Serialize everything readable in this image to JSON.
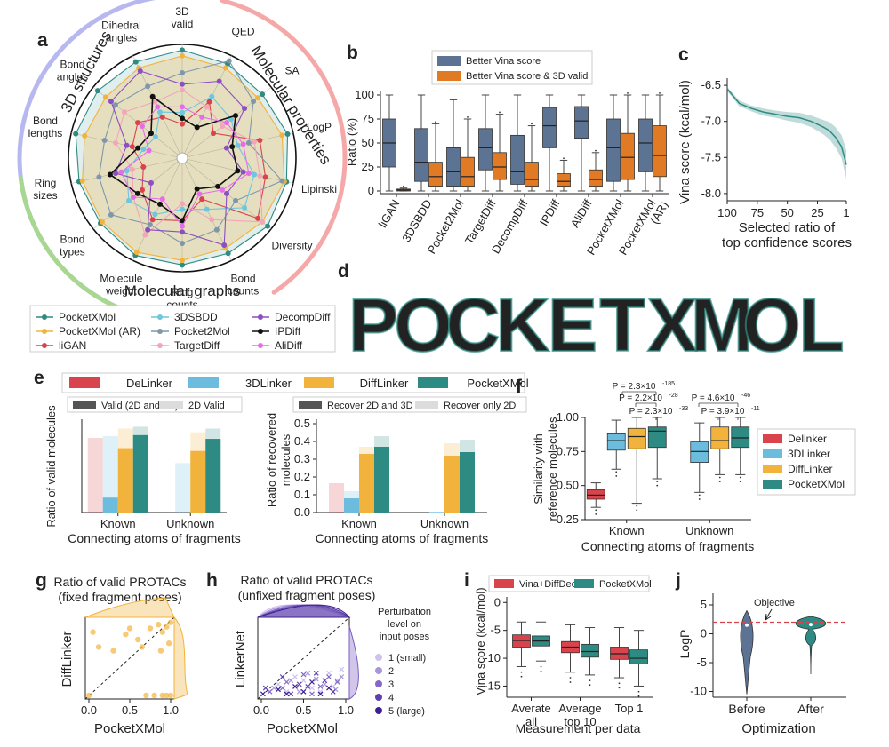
{
  "colors": {
    "pocketxmol": "#2e8b83",
    "pocketxmol_ar": "#f2b33c",
    "ligan": "#d9434c",
    "threedsbdd": "#6ec6df",
    "pocket2mol": "#7f97aa",
    "targetdiff": "#f2a6b8",
    "decompdiff": "#8b4fc0",
    "ipdiff": "#111111",
    "alidiff": "#e56ee8",
    "vina_blue": "#5d7394",
    "vina_orange": "#e07a25",
    "delinker": "#d9434c",
    "linker3d": "#6bbcdd",
    "difflinker": "#f2b33c",
    "gray": "#555555",
    "lightgray": "#dcdcdc",
    "purple": "#7a5cc0",
    "red": "#d9434c",
    "teal": "#2e8b83"
  },
  "panel_labels": {
    "a": "a",
    "b": "b",
    "c": "c",
    "d": "d",
    "e": "e",
    "f": "f",
    "g": "g",
    "h": "h",
    "i": "i",
    "j": "j"
  },
  "chart_data": [
    {
      "id": "a",
      "type": "radar",
      "axes": [
        "3D valid",
        "QED",
        "SA",
        "LogP",
        "Lipinski",
        "Diversity",
        "Bond counts",
        "Ring counts",
        "Molecule weight",
        "Bond types",
        "Ring sizes",
        "Bond lengths",
        "Bond angles",
        "Dihedral angles"
      ],
      "axis_label_lines": [
        [
          "3D",
          "valid"
        ],
        [
          "QED"
        ],
        [
          "SA"
        ],
        [
          "LogP"
        ],
        [
          "Lipinski"
        ],
        [
          "Diversity"
        ],
        [
          "Bond",
          "counts"
        ],
        [
          "Ring",
          "counts"
        ],
        [
          "Molecule",
          "weight"
        ],
        [
          "Bond",
          "types"
        ],
        [
          "Ring",
          "sizes"
        ],
        [
          "Bond",
          "lengths"
        ],
        [
          "Bond",
          "angles"
        ],
        [
          "Dihedral",
          "angles"
        ]
      ],
      "groups": [
        "3D structures",
        "Molecular properties",
        "Molecular graphs"
      ],
      "series": [
        {
          "name": "PocketXMol",
          "values": [
            0.95,
            0.92,
            0.9,
            0.95,
            0.94,
            0.96,
            0.93,
            0.94,
            0.95,
            0.92,
            0.93,
            0.96,
            0.95,
            0.94
          ]
        },
        {
          "name": "PocketXMol (AR)",
          "values": [
            0.9,
            0.88,
            0.85,
            0.9,
            0.92,
            0.9,
            0.88,
            0.9,
            0.92,
            0.9,
            0.9,
            0.88,
            0.86,
            0.88
          ]
        },
        {
          "name": "liGAN",
          "values": [
            0.3,
            0.55,
            0.35,
            0.7,
            0.75,
            0.85,
            0.4,
            0.55,
            0.6,
            0.45,
            0.35,
            0.45,
            0.5,
            0.4
          ]
        },
        {
          "name": "3DSBDD",
          "values": [
            0.4,
            0.6,
            0.55,
            0.5,
            0.65,
            0.7,
            0.5,
            0.45,
            0.55,
            0.6,
            0.5,
            0.35,
            0.3,
            0.45
          ]
        },
        {
          "name": "Pocket2Mol",
          "values": [
            0.75,
            0.95,
            0.8,
            0.6,
            0.9,
            0.6,
            0.7,
            0.75,
            0.65,
            0.8,
            0.75,
            0.7,
            0.75,
            0.7
          ]
        },
        {
          "name": "TargetDiff",
          "values": [
            0.6,
            0.5,
            0.45,
            0.65,
            0.7,
            0.9,
            0.6,
            0.4,
            0.75,
            0.55,
            0.45,
            0.6,
            0.65,
            0.55
          ]
        },
        {
          "name": "DecompDiff",
          "values": [
            0.65,
            0.75,
            0.7,
            0.4,
            0.55,
            0.5,
            0.85,
            0.65,
            0.7,
            0.35,
            0.6,
            0.5,
            0.8,
            0.85
          ]
        },
        {
          "name": "IPDiff",
          "values": [
            0.35,
            0.3,
            0.6,
            0.45,
            0.5,
            0.4,
            0.3,
            0.55,
            0.45,
            0.5,
            0.65,
            0.4,
            0.35,
            0.6
          ]
        },
        {
          "name": "AliDiff",
          "values": [
            0.45,
            0.4,
            0.5,
            0.55,
            0.6,
            0.45,
            0.35,
            0.6,
            0.4,
            0.55,
            0.55,
            0.3,
            0.45,
            0.5
          ]
        }
      ]
    },
    {
      "id": "b",
      "type": "box",
      "title": "",
      "ylabel": "Ratio (%)",
      "ylim": [
        0,
        100
      ],
      "yticks": [
        0,
        25,
        50,
        75,
        100
      ],
      "categories": [
        "liGAN",
        "3DSBDD",
        "Pocket2Mol",
        "TargetDiff",
        "DecompDiff",
        "IPDiff",
        "AliDiff",
        "PocketXMol",
        "PocketXMol (AR)"
      ],
      "category_label_lines": [
        [
          "liGAN"
        ],
        [
          "3DSBDD"
        ],
        [
          "Pocket2Mol"
        ],
        [
          "TargetDiff"
        ],
        [
          "DecompDiff"
        ],
        [
          "IPDiff"
        ],
        [
          "AliDiff"
        ],
        [
          "PocketXMol"
        ],
        [
          "PocketXMol",
          "(AR)"
        ]
      ],
      "legend": [
        "Better Vina score",
        "Better Vina score & 3D valid"
      ],
      "series": [
        {
          "name": "Better Vina score",
          "boxes": [
            [
              0,
              25,
              50,
              75,
              100
            ],
            [
              0,
              10,
              30,
              65,
              100
            ],
            [
              0,
              5,
              20,
              45,
              95
            ],
            [
              0,
              22,
              45,
              65,
              100
            ],
            [
              0,
              7,
              20,
              58,
              100
            ],
            [
              0,
              45,
              68,
              87,
              100
            ],
            [
              0,
              55,
              73,
              88,
              100
            ],
            [
              0,
              10,
              45,
              75,
              100
            ],
            [
              0,
              20,
              50,
              75,
              100
            ]
          ]
        },
        {
          "name": "Better Vina score & 3D valid",
          "boxes": [
            [
              0,
              0,
              1,
              2,
              3
            ],
            [
              0,
              5,
              15,
              30,
              70
            ],
            [
              0,
              5,
              15,
              35,
              75
            ],
            [
              0,
              12,
              25,
              40,
              80
            ],
            [
              0,
              5,
              12,
              30,
              68
            ],
            [
              0,
              5,
              10,
              18,
              32
            ],
            [
              0,
              5,
              12,
              22,
              40
            ],
            [
              0,
              12,
              35,
              60,
              100
            ],
            [
              0,
              15,
              37,
              68,
              100
            ]
          ]
        }
      ]
    },
    {
      "id": "c",
      "type": "line",
      "xlabel": "Selected ratio of top confidence scores",
      "ylabel": "Vina score (kcal/mol)",
      "xlim": [
        100,
        1
      ],
      "ylim": [
        -8.1,
        -6.4
      ],
      "xticks": [
        100,
        75,
        50,
        25,
        1
      ],
      "yticks": [
        -6.5,
        -7.0,
        -7.5,
        -8.0
      ],
      "x": [
        100,
        90,
        80,
        70,
        60,
        50,
        40,
        30,
        20,
        15,
        10,
        5,
        1
      ],
      "y": [
        -6.55,
        -6.75,
        -6.82,
        -6.87,
        -6.9,
        -6.93,
        -6.95,
        -7.0,
        -7.08,
        -7.13,
        -7.22,
        -7.35,
        -7.6
      ],
      "ci": [
        0.03,
        0.04,
        0.04,
        0.05,
        0.05,
        0.06,
        0.07,
        0.08,
        0.1,
        0.12,
        0.14,
        0.16,
        0.2
      ]
    },
    {
      "id": "d",
      "type": "image",
      "text": "POCKETXMOL"
    },
    {
      "id": "e1",
      "type": "bar",
      "xlabel": "Connecting atoms of fragments",
      "ylabel": "Ratio of valid molecules",
      "categories": [
        "Known",
        "Unknown"
      ],
      "ylim": [
        0,
        1
      ],
      "yticks": [],
      "methods": [
        "DeLinker",
        "3DLinker",
        "DiffLinker",
        "PocketXMol"
      ],
      "legend": [
        "Valid (2D and 3D)",
        "2D Valid"
      ],
      "series": [
        {
          "name": "Valid (2D and 3D)",
          "values": [
            [
              0,
              0.16,
              0.69,
              0.83
            ],
            [
              0,
              0,
              0.66,
              0.79
            ]
          ]
        },
        {
          "name": "2D Valid",
          "values": [
            [
              0.8,
              0.82,
              0.9,
              0.92
            ],
            [
              0,
              0.53,
              0.86,
              0.9
            ]
          ]
        }
      ]
    },
    {
      "id": "e2",
      "type": "bar",
      "xlabel": "Connecting atoms of fragments",
      "ylabel": "Ratio of recovered molecules",
      "categories": [
        "Known",
        "Unknown"
      ],
      "ylim": [
        0,
        0.5
      ],
      "yticks": [
        0.0,
        0.1,
        0.2,
        0.3,
        0.4,
        0.5
      ],
      "methods": [
        "DeLinker",
        "3DLinker",
        "DiffLinker",
        "PocketXMol"
      ],
      "legend": [
        "Recover 2D and 3D",
        "Recover only 2D"
      ],
      "series": [
        {
          "name": "Recover 2D and 3D",
          "values": [
            [
              0,
              0.08,
              0.33,
              0.37
            ],
            [
              0,
              0.003,
              0.32,
              0.34
            ]
          ]
        },
        {
          "name": "Recover only 2D",
          "values": [
            [
              0.165,
              0.12,
              0.37,
              0.43
            ],
            [
              0,
              0.005,
              0.39,
              0.41
            ]
          ]
        }
      ]
    },
    {
      "id": "f",
      "type": "box",
      "xlabel": "Connecting atoms of fragments",
      "ylabel": "Similarity with reference molecules",
      "categories": [
        "Known",
        "Unknown"
      ],
      "ylim": [
        0.25,
        1.0
      ],
      "yticks": [
        0.25,
        0.5,
        0.75,
        1.0
      ],
      "legend": [
        "Delinker",
        "3DLinker",
        "DiffLinker",
        "PocketXMol"
      ],
      "boxes": [
        [
          [
            0.34,
            0.4,
            0.43,
            0.47,
            0.52
          ],
          [
            0.62,
            0.76,
            0.83,
            0.88,
            0.98
          ],
          [
            0.37,
            0.77,
            0.86,
            0.92,
            1.0
          ],
          [
            0.55,
            0.78,
            0.9,
            0.93,
            1.0
          ]
        ],
        [
          null,
          [
            0.45,
            0.67,
            0.75,
            0.82,
            0.96
          ],
          [
            0.58,
            0.77,
            0.83,
            0.93,
            1.0
          ],
          [
            0.58,
            0.78,
            0.85,
            0.93,
            1.0
          ]
        ]
      ],
      "annotations": [
        "P = 2.3×10",
        "-185",
        "P = 2.2×10",
        "-28",
        "P = 2.3×10",
        "-33",
        "P = 4.6×10",
        "-46",
        "P = 3.9×10",
        "-11"
      ]
    },
    {
      "id": "g",
      "type": "scatter",
      "title": "Ratio of valid PROTACs",
      "subtitle": "(fixed fragment poses)",
      "xlabel": "PocketXMol",
      "ylabel": "DiffLinker",
      "xlim": [
        0,
        1
      ],
      "ylim": [
        0,
        1
      ],
      "xticks": [
        0.0,
        0.5,
        1.0
      ],
      "points": [
        [
          0.05,
          0.85
        ],
        [
          0.12,
          0.65
        ],
        [
          0.3,
          0.6
        ],
        [
          0.45,
          0.82
        ],
        [
          0.6,
          0.75
        ],
        [
          0.75,
          0.9
        ],
        [
          0.85,
          0.95
        ],
        [
          0.9,
          0.85
        ],
        [
          0.95,
          0.92
        ],
        [
          1.0,
          0.98
        ],
        [
          0.9,
          0.0
        ],
        [
          0.8,
          0.0
        ],
        [
          0.95,
          0.0
        ],
        [
          1.0,
          0.0
        ],
        [
          0.7,
          0.0
        ],
        [
          0.0,
          0.0
        ],
        [
          0.88,
          0.6
        ],
        [
          0.65,
          0.65
        ],
        [
          0.5,
          0.9
        ],
        [
          0.98,
          0.7
        ]
      ]
    },
    {
      "id": "h",
      "type": "scatter",
      "title": "Ratio of valid PROTACs",
      "subtitle": "(unfixed fragment poses)",
      "xlabel": "PocketXMol",
      "ylabel": "LinkerNet",
      "xlim": [
        0,
        1
      ],
      "ylim": [
        0,
        1
      ],
      "xticks": [
        0.0,
        0.5,
        1.0
      ],
      "legend_title": [
        "Perturbation",
        "level on",
        "input poses"
      ],
      "levels": [
        "1 (small)",
        "2",
        "3",
        "4",
        "5 (large)"
      ],
      "points_per_level": [
        [
          [
            0.2,
            0.15
          ],
          [
            0.4,
            0.25
          ],
          [
            0.6,
            0.1
          ],
          [
            0.8,
            0.3
          ],
          [
            0.9,
            0.2
          ],
          [
            0.7,
            0.05
          ],
          [
            0.95,
            0.35
          ],
          [
            0.5,
            0.2
          ],
          [
            0.3,
            0.05
          ],
          [
            0.85,
            0.12
          ]
        ],
        [
          [
            0.15,
            0.1
          ],
          [
            0.35,
            0.2
          ],
          [
            0.55,
            0.3
          ],
          [
            0.75,
            0.15
          ],
          [
            0.95,
            0.25
          ],
          [
            0.45,
            0.05
          ],
          [
            0.65,
            0.22
          ],
          [
            0.88,
            0.08
          ]
        ],
        [
          [
            0.1,
            0.05
          ],
          [
            0.3,
            0.18
          ],
          [
            0.5,
            0.28
          ],
          [
            0.7,
            0.12
          ],
          [
            0.9,
            0.18
          ],
          [
            0.6,
            0.02
          ],
          [
            0.8,
            0.25
          ],
          [
            0.25,
            0.1
          ]
        ],
        [
          [
            0.05,
            0.1
          ],
          [
            0.25,
            0.25
          ],
          [
            0.45,
            0.15
          ],
          [
            0.65,
            0.3
          ],
          [
            0.85,
            0.05
          ],
          [
            0.55,
            0.12
          ],
          [
            0.75,
            0.2
          ],
          [
            0.35,
            0.02
          ]
        ],
        [
          [
            0.02,
            0.02
          ],
          [
            0.2,
            0.08
          ],
          [
            0.4,
            0.12
          ],
          [
            0.6,
            0.18
          ],
          [
            0.8,
            0.1
          ],
          [
            0.3,
            0.02
          ],
          [
            0.5,
            0.05
          ],
          [
            0.7,
            0.02
          ]
        ]
      ]
    },
    {
      "id": "i",
      "type": "box",
      "xlabel": "Measurement per data",
      "ylabel": "Vina score (kcal/mol)",
      "categories": [
        "Averate all",
        "Average top 10",
        "Top 1"
      ],
      "category_label_lines": [
        [
          "Averate",
          "all"
        ],
        [
          "Average",
          "top 10"
        ],
        [
          "Top 1"
        ]
      ],
      "ylim": [
        -17,
        1
      ],
      "yticks": [
        0,
        -5,
        -10,
        -15
      ],
      "legend": [
        "Vina+DiffDec",
        "PocketXMol"
      ],
      "boxes": [
        [
          [
            -11.5,
            -8,
            -6.8,
            -5.8,
            -3.5
          ],
          [
            -10.5,
            -7.8,
            -6.9,
            -6.0,
            -3.5
          ]
        ],
        [
          [
            -12.5,
            -9,
            -8.0,
            -7.0,
            -4
          ],
          [
            -13,
            -9.8,
            -8.8,
            -7.5,
            -4.5
          ]
        ],
        [
          [
            -13.5,
            -10.2,
            -9.2,
            -8.0,
            -4.5
          ],
          [
            -15,
            -11,
            -10,
            -8.5,
            -5
          ]
        ]
      ]
    },
    {
      "id": "j",
      "type": "violin",
      "xlabel": "Optimization",
      "ylabel": "LogP",
      "categories": [
        "Before",
        "After"
      ],
      "ylim": [
        -11,
        7
      ],
      "yticks": [
        5,
        0,
        -5,
        -10
      ],
      "objective_value": 2,
      "annotation": "Objective",
      "medians": [
        1.5,
        1.6
      ]
    }
  ]
}
